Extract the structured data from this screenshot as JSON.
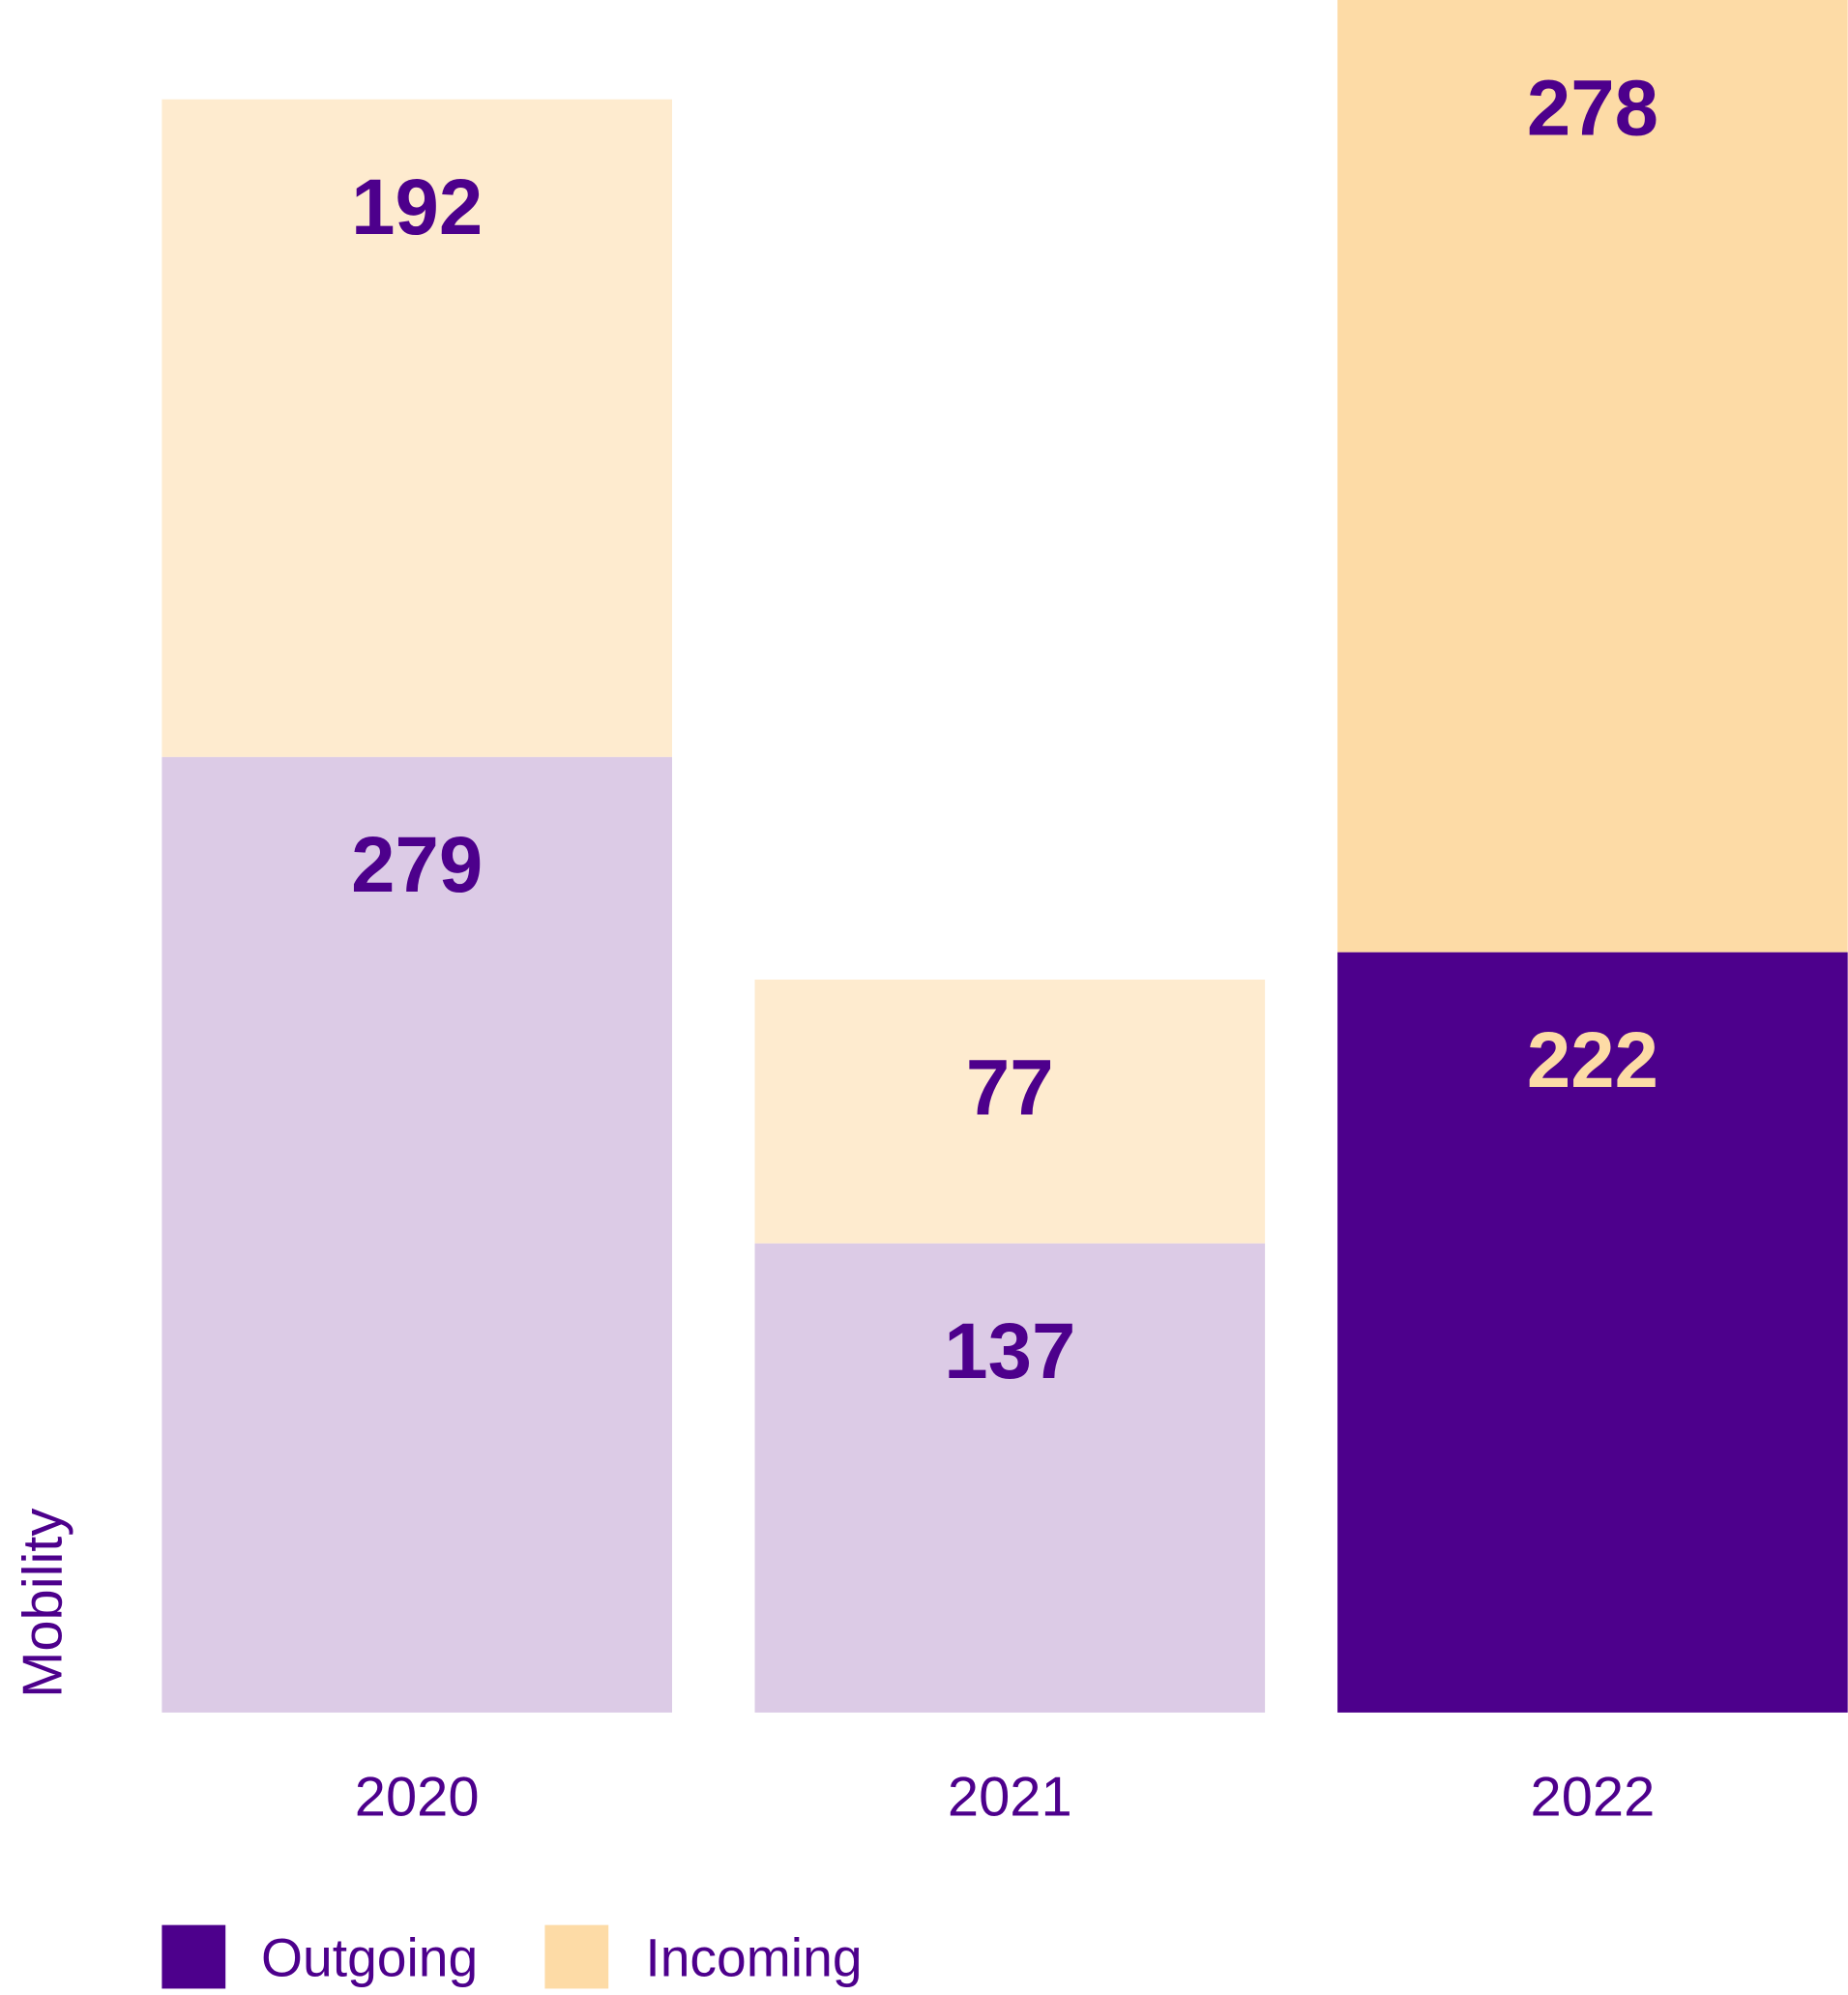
{
  "chart_data": {
    "type": "bar",
    "stacked": true,
    "ylabel": "Mobility",
    "ylim": [
      0,
      500
    ],
    "grid": false,
    "legend_position": "bottom-left",
    "categories": [
      "2020",
      "2021",
      "2022"
    ],
    "series": [
      {
        "name": "Outgoing",
        "values": [
          279,
          137,
          222
        ]
      },
      {
        "name": "Incoming",
        "values": [
          192,
          77,
          278
        ]
      }
    ],
    "colors": {
      "outgoing": "#4d008c",
      "incoming": "#fddba6",
      "outgoing_faded": "#dccbe6",
      "incoming_faded": "#feebcf",
      "text": "#4d008c",
      "label_on_dark": "#fddba6"
    },
    "highlighted_category": "2022"
  }
}
